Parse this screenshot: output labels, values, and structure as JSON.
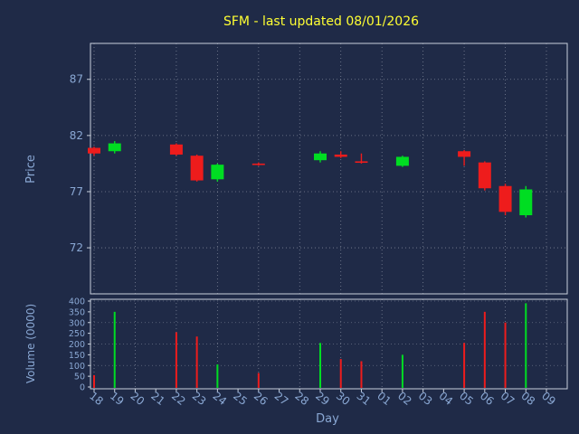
{
  "title": "SFM - last updated 08/01/2026",
  "colors": {
    "background": "#1f2a47",
    "title": "#ffff33",
    "label": "#8aa8d4",
    "spine": "#c8d0dc",
    "grid": "#9aa0b0",
    "up": "#00dd22",
    "down": "#ee1c1c"
  },
  "chart_data": {
    "type": "candlestick",
    "title": "SFM - last updated 08/01/2026",
    "xlabel": "Day",
    "ylabel_price": "Price",
    "ylabel_volume": "Volume (0000)",
    "x_categories": [
      "18",
      "19",
      "20",
      "21",
      "22",
      "23",
      "24",
      "25",
      "26",
      "27",
      "28",
      "29",
      "30",
      "31",
      "01",
      "02",
      "03",
      "04",
      "05",
      "06",
      "07",
      "08",
      "09"
    ],
    "price_ticks": [
      72,
      77,
      82,
      87
    ],
    "price_range": [
      67.9,
      90.2
    ],
    "volume_ticks": [
      0,
      50,
      100,
      150,
      200,
      250,
      300,
      350,
      400
    ],
    "volume_range": [
      0,
      400
    ],
    "grid": "dashed, vertical line every 2nd day, legend none",
    "candles": [
      {
        "i": 0,
        "day": "18",
        "open": 80.9,
        "high": 81.0,
        "low": 80.2,
        "close": 80.4,
        "volume": 55
      },
      {
        "i": 1,
        "day": "19",
        "open": 80.6,
        "high": 81.5,
        "low": 80.4,
        "close": 81.3,
        "volume": 350
      },
      {
        "i": 4,
        "day": "22",
        "open": 81.2,
        "high": 81.3,
        "low": 80.2,
        "close": 80.3,
        "volume": 255
      },
      {
        "i": 5,
        "day": "23",
        "open": 80.2,
        "high": 80.3,
        "low": 77.9,
        "close": 78.0,
        "volume": 235
      },
      {
        "i": 6,
        "day": "24",
        "open": 78.1,
        "high": 79.5,
        "low": 77.9,
        "close": 79.4,
        "volume": 105
      },
      {
        "i": 8,
        "day": "26",
        "open": 79.5,
        "high": 79.6,
        "low": 79.3,
        "close": 79.4,
        "volume": 65
      },
      {
        "i": 11,
        "day": "29",
        "open": 79.8,
        "high": 80.6,
        "low": 79.6,
        "close": 80.4,
        "volume": 205
      },
      {
        "i": 12,
        "day": "30",
        "open": 80.3,
        "high": 80.6,
        "low": 80.0,
        "close": 80.1,
        "volume": 130
      },
      {
        "i": 13,
        "day": "31",
        "open": 79.7,
        "high": 80.4,
        "low": 79.5,
        "close": 79.6,
        "volume": 120
      },
      {
        "i": 15,
        "day": "02",
        "open": 79.3,
        "high": 80.2,
        "low": 79.2,
        "close": 80.1,
        "volume": 150
      },
      {
        "i": 18,
        "day": "05",
        "open": 80.6,
        "high": 80.7,
        "low": 79.3,
        "close": 80.1,
        "volume": 205
      },
      {
        "i": 19,
        "day": "06",
        "open": 79.6,
        "high": 79.7,
        "low": 77.1,
        "close": 77.3,
        "volume": 350
      },
      {
        "i": 20,
        "day": "07",
        "open": 77.5,
        "high": 77.7,
        "low": 74.9,
        "close": 75.2,
        "volume": 300
      },
      {
        "i": 21,
        "day": "08",
        "open": 74.9,
        "high": 77.5,
        "low": 74.7,
        "close": 77.2,
        "volume": 390
      }
    ]
  }
}
